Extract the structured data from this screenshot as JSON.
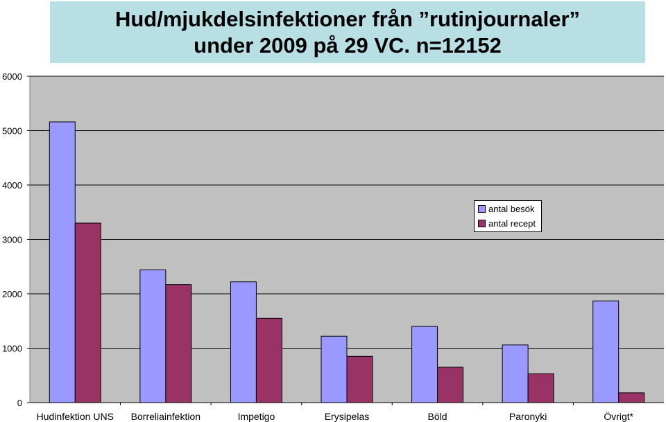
{
  "chart_data": {
    "type": "bar",
    "title": "Hud/mjukdelsinfektioner från ”rutinjournaler” under 2009 på 29 VC.  n=12152",
    "categories": [
      "Hudinfektion UNS",
      "Borreliainfektion",
      "Impetigo",
      "Erysipelas",
      "Böld",
      "Paronyki",
      "Övrigt*"
    ],
    "series": [
      {
        "name": "antal besök",
        "color": "#9999ff",
        "values": [
          5160,
          2440,
          2220,
          1220,
          1400,
          1060,
          1870
        ]
      },
      {
        "name": "antal recept",
        "color": "#993366",
        "values": [
          3300,
          2170,
          1550,
          850,
          650,
          530,
          180
        ]
      }
    ],
    "yticks": [
      0,
      1000,
      2000,
      3000,
      4000,
      5000,
      6000
    ],
    "ylim": [
      0,
      6000
    ],
    "grid": true,
    "legend_position": "right",
    "plot_background": "#c0c0c0"
  }
}
